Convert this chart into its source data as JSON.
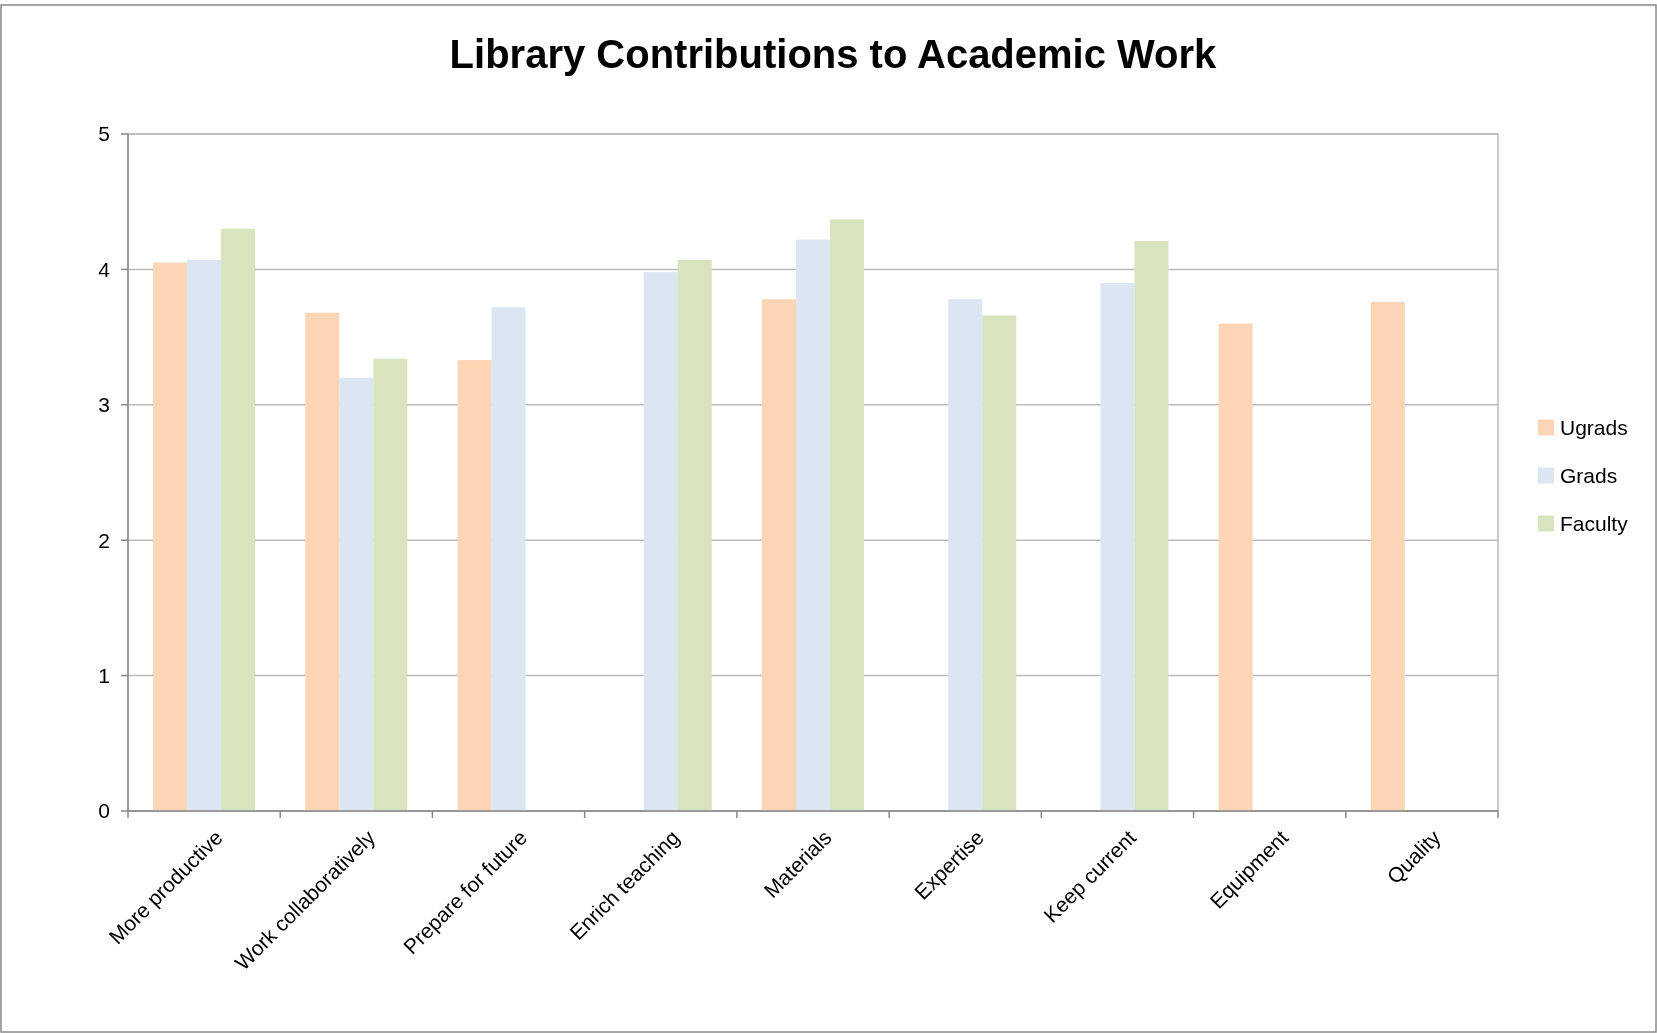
{
  "chart_data": {
    "type": "bar",
    "title": "Library Contributions to Academic Work",
    "categories": [
      "More productive",
      "Work collaboratively",
      "Prepare for future",
      "Enrich teaching",
      "Materials",
      "Expertise",
      "Keep current",
      "Equipment",
      "Quality"
    ],
    "series": [
      {
        "name": "Ugrads",
        "color": "#fcd5b5",
        "values": [
          4.05,
          3.68,
          3.33,
          null,
          3.78,
          null,
          null,
          3.6,
          3.76
        ]
      },
      {
        "name": "Grads",
        "color": "#dce6f2",
        "values": [
          4.07,
          3.2,
          3.72,
          3.98,
          4.22,
          3.78,
          3.9,
          null,
          null
        ]
      },
      {
        "name": "Faculty",
        "color": "#d7e4bd",
        "values": [
          4.3,
          3.34,
          null,
          4.07,
          4.37,
          3.66,
          4.21,
          null,
          null
        ]
      }
    ],
    "ylim": [
      0,
      5
    ],
    "yticks": [
      0,
      1,
      2,
      3,
      4,
      5
    ],
    "grid": "y",
    "legend": "right"
  }
}
